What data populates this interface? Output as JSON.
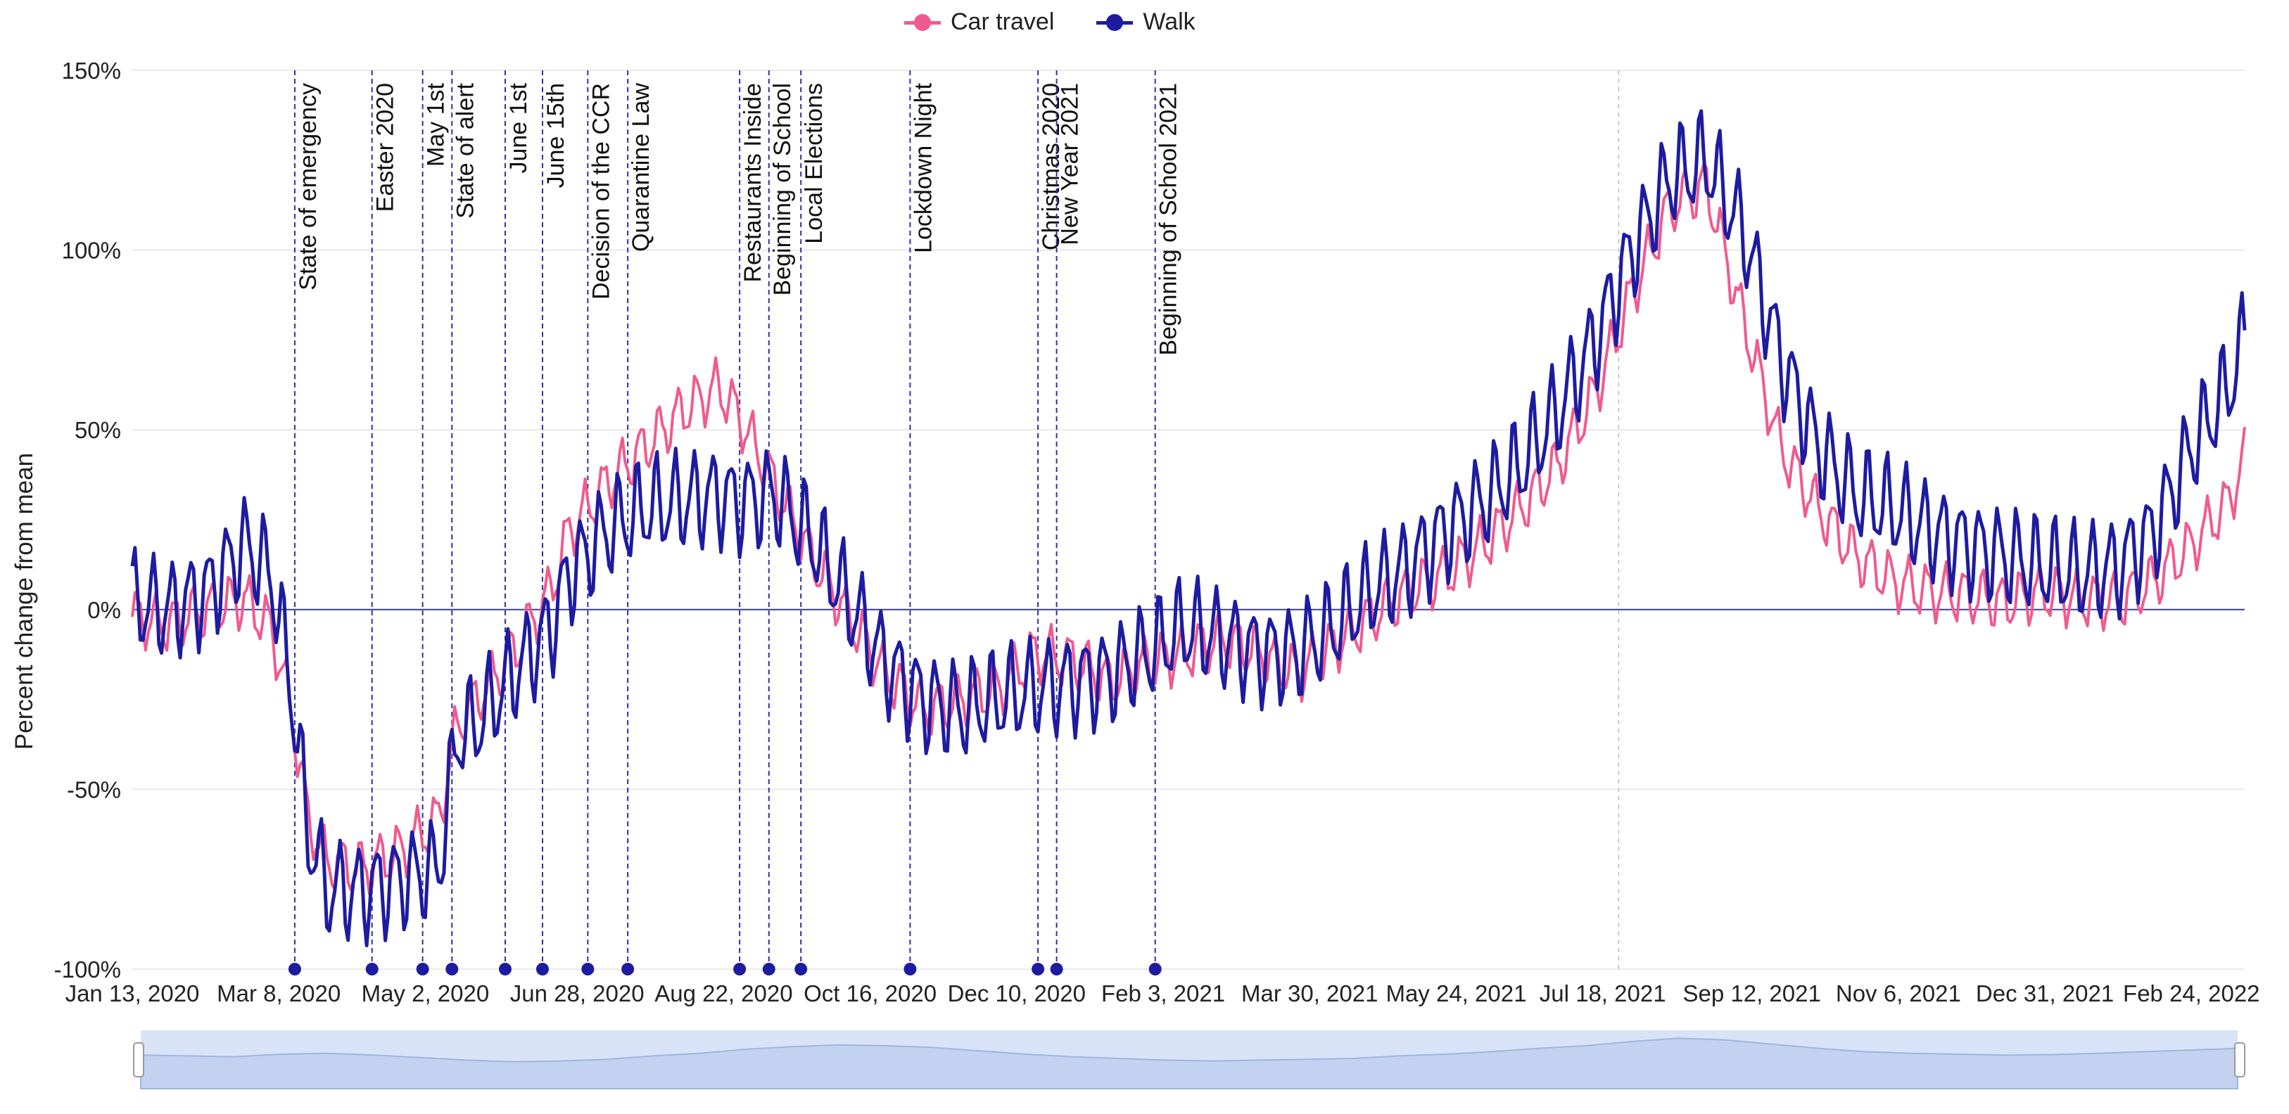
{
  "legend": {
    "items": [
      {
        "label": "Car travel",
        "color": "#ef5b8f"
      },
      {
        "label": "Walk",
        "color": "#1d1ca0"
      }
    ]
  },
  "chart_data": {
    "type": "line",
    "ylabel": "Percent change from mean",
    "ylim": [
      -100,
      150
    ],
    "y_ticks": [
      "150%",
      "100%",
      "50%",
      "0%",
      "-50%",
      "-100%"
    ],
    "y_tick_values": [
      150,
      100,
      50,
      0,
      -50,
      -100
    ],
    "xlim": [
      "2020-01-13",
      "2022-03-16"
    ],
    "x_ticks": [
      "Jan 13, 2020",
      "Mar 8, 2020",
      "May 2, 2020",
      "Jun 28, 2020",
      "Aug 22, 2020",
      "Oct 16, 2020",
      "Dec 10, 2020",
      "Feb 3, 2021",
      "Mar 30, 2021",
      "May 24, 2021",
      "Jul 18, 2021",
      "Sep 12, 2021",
      "Nov 6, 2021",
      "Dec 31, 2021",
      "Feb 24, 2022"
    ],
    "x_tick_dates": [
      "2020-01-13",
      "2020-03-08",
      "2020-05-02",
      "2020-06-28",
      "2020-08-22",
      "2020-10-16",
      "2020-12-10",
      "2021-02-03",
      "2021-03-30",
      "2021-05-24",
      "2021-07-18",
      "2021-09-12",
      "2021-11-06",
      "2021-12-31",
      "2022-02-24"
    ],
    "grid": true,
    "legend_position": "top-center",
    "events": [
      {
        "label": "State of emergency",
        "date": "2020-03-14"
      },
      {
        "label": "Easter 2020",
        "date": "2020-04-12"
      },
      {
        "label": "May 1st",
        "date": "2020-05-01"
      },
      {
        "label": "State of alert",
        "date": "2020-05-12"
      },
      {
        "label": "June 1st",
        "date": "2020-06-01"
      },
      {
        "label": "June 15th",
        "date": "2020-06-15"
      },
      {
        "label": "Decision of the CCR",
        "date": "2020-07-02"
      },
      {
        "label": "Quarantine Law",
        "date": "2020-07-17"
      },
      {
        "label": "Restaurants Inside",
        "date": "2020-08-28"
      },
      {
        "label": "Beginning of School",
        "date": "2020-09-08"
      },
      {
        "label": "Local Elections",
        "date": "2020-09-20"
      },
      {
        "label": "Lockdown Night",
        "date": "2020-10-31"
      },
      {
        "label": "Christmas 2020",
        "date": "2020-12-18"
      },
      {
        "label": "New Year 2021",
        "date": "2020-12-25"
      },
      {
        "label": "Beginning of School 2021",
        "date": "2021-01-31"
      }
    ],
    "series": [
      {
        "name": "Car travel",
        "color": "#ef5b8f",
        "x": [
          "2020-01-13",
          "2020-01-27",
          "2020-02-10",
          "2020-02-24",
          "2020-03-05",
          "2020-03-12",
          "2020-03-19",
          "2020-03-26",
          "2020-04-09",
          "2020-04-23",
          "2020-05-07",
          "2020-05-14",
          "2020-05-21",
          "2020-06-04",
          "2020-06-18",
          "2020-06-25",
          "2020-07-09",
          "2020-07-23",
          "2020-08-06",
          "2020-08-20",
          "2020-08-27",
          "2020-09-10",
          "2020-09-24",
          "2020-10-08",
          "2020-10-22",
          "2020-11-05",
          "2020-11-19",
          "2020-12-03",
          "2020-12-17",
          "2020-12-31",
          "2021-01-14",
          "2021-01-28",
          "2021-02-11",
          "2021-02-25",
          "2021-03-11",
          "2021-03-25",
          "2021-04-08",
          "2021-04-22",
          "2021-05-06",
          "2021-05-20",
          "2021-06-03",
          "2021-06-17",
          "2021-07-01",
          "2021-07-15",
          "2021-07-29",
          "2021-08-12",
          "2021-08-26",
          "2021-09-09",
          "2021-09-23",
          "2021-10-07",
          "2021-10-21",
          "2021-11-04",
          "2021-11-18",
          "2021-12-02",
          "2021-12-16",
          "2021-12-30",
          "2022-01-13",
          "2022-01-27",
          "2022-02-10",
          "2022-02-24",
          "2022-03-10",
          "2022-03-16"
        ],
        "y": [
          -2,
          -4,
          0,
          3,
          -5,
          -25,
          -58,
          -70,
          -72,
          -67,
          -58,
          -32,
          -25,
          -12,
          5,
          22,
          35,
          45,
          55,
          62,
          55,
          35,
          15,
          -2,
          -18,
          -28,
          -25,
          -22,
          -12,
          -14,
          -20,
          -15,
          -12,
          -8,
          -12,
          -18,
          -10,
          -2,
          5,
          10,
          18,
          28,
          40,
          60,
          88,
          112,
          118,
          80,
          45,
          28,
          15,
          8,
          5,
          4,
          2,
          5,
          3,
          2,
          8,
          18,
          30,
          42
        ]
      },
      {
        "name": "Walk",
        "color": "#1d1ca0",
        "x": [
          "2020-01-13",
          "2020-01-27",
          "2020-02-10",
          "2020-02-24",
          "2020-03-05",
          "2020-03-12",
          "2020-03-19",
          "2020-03-26",
          "2020-04-09",
          "2020-04-23",
          "2020-05-07",
          "2020-05-14",
          "2020-05-21",
          "2020-06-04",
          "2020-06-18",
          "2020-06-25",
          "2020-07-09",
          "2020-07-23",
          "2020-08-06",
          "2020-08-20",
          "2020-08-27",
          "2020-09-10",
          "2020-09-24",
          "2020-10-08",
          "2020-10-22",
          "2020-11-05",
          "2020-11-19",
          "2020-12-03",
          "2020-12-17",
          "2020-12-31",
          "2021-01-14",
          "2021-01-28",
          "2021-02-11",
          "2021-02-25",
          "2021-03-11",
          "2021-03-25",
          "2021-04-08",
          "2021-04-22",
          "2021-05-06",
          "2021-05-20",
          "2021-06-03",
          "2021-06-17",
          "2021-07-01",
          "2021-07-15",
          "2021-07-29",
          "2021-08-12",
          "2021-08-26",
          "2021-09-09",
          "2021-09-23",
          "2021-10-07",
          "2021-10-21",
          "2021-11-04",
          "2021-11-18",
          "2021-12-02",
          "2021-12-16",
          "2021-12-30",
          "2022-01-13",
          "2022-01-27",
          "2022-02-10",
          "2022-02-24",
          "2022-03-10",
          "2022-03-16"
        ],
        "y": [
          2,
          0,
          5,
          18,
          10,
          -18,
          -62,
          -78,
          -78,
          -75,
          -72,
          -35,
          -32,
          -18,
          -5,
          10,
          22,
          28,
          30,
          32,
          30,
          32,
          20,
          2,
          -15,
          -25,
          -28,
          -25,
          -22,
          -20,
          -18,
          -12,
          -5,
          -8,
          -12,
          -12,
          -5,
          5,
          12,
          22,
          30,
          40,
          55,
          75,
          100,
          120,
          125,
          105,
          70,
          45,
          32,
          28,
          22,
          18,
          15,
          12,
          10,
          12,
          22,
          45,
          62,
          75
        ]
      }
    ]
  },
  "brush": {
    "area": [
      8,
      6,
      4,
      10,
      12,
      8,
      2,
      -4,
      -8,
      -6,
      -2,
      6,
      12,
      22,
      28,
      32,
      30,
      26,
      18,
      10,
      4,
      0,
      -4,
      -6,
      -4,
      -2,
      0,
      6,
      10,
      16,
      24,
      30,
      40,
      48,
      44,
      34,
      24,
      16,
      12,
      10,
      8,
      9,
      12,
      16,
      20,
      24
    ]
  }
}
